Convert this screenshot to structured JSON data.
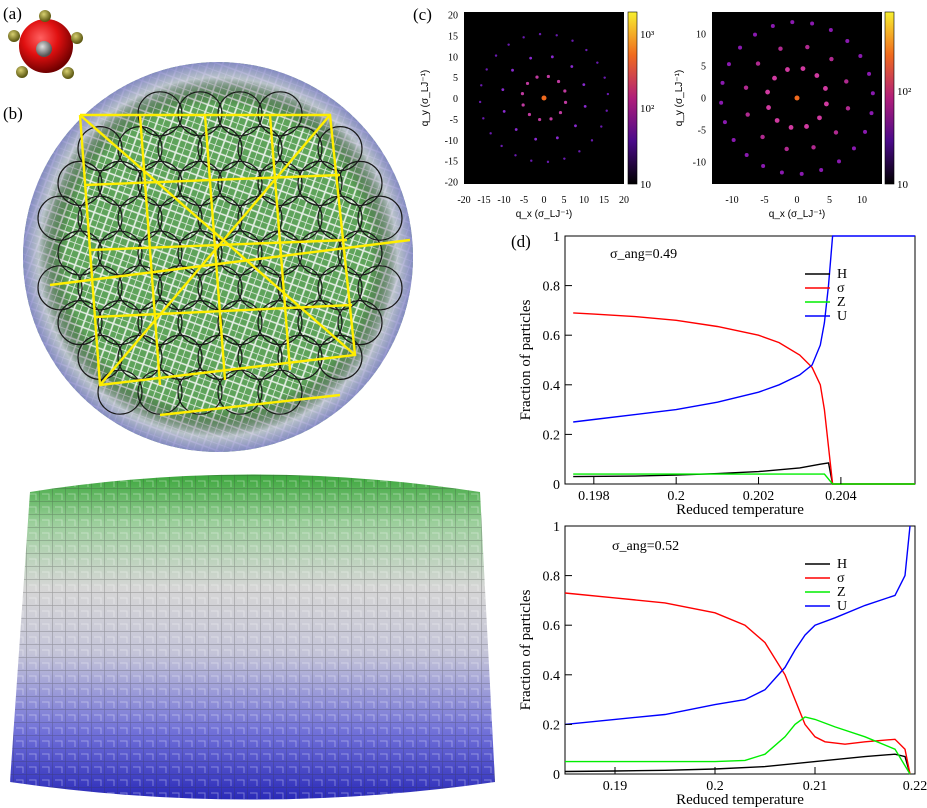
{
  "panel_labels": {
    "a": "(a)",
    "b": "(b)",
    "c": "(c)",
    "d": "(d)"
  },
  "colors": {
    "H": "#000000",
    "sigma": "#ff0000",
    "Z": "#00ee00",
    "U": "#0000ff",
    "lattice": "#ffee00",
    "green": "#3a9a3a",
    "blue": "#3c3ccc",
    "red_sphere": "#e01010"
  },
  "diffraction": [
    {
      "xlabel": "q_x (σ_LJ⁻¹)",
      "ylabel": "q_y (σ_LJ⁻¹)",
      "xticks": [
        "-20",
        "-15",
        "-10",
        "-5",
        "0",
        "5",
        "10",
        "15",
        "20"
      ],
      "yticks": [
        "20",
        "15",
        "10",
        "5",
        "0",
        "-5",
        "-10",
        "-15",
        "-20"
      ],
      "colorbar": {
        "top": "10³",
        "mid": "10²",
        "bottom": "10"
      }
    },
    {
      "xlabel": "q_x (σ_LJ⁻¹)",
      "ylabel": "q_y (σ_LJ⁻¹)",
      "xticks": [
        "-10",
        "-5",
        "0",
        "5",
        "10"
      ],
      "yticks": [
        "10",
        "5",
        "0",
        "-5",
        "-10"
      ],
      "colorbar": {
        "top": "10²",
        "bottom": "10"
      }
    }
  ],
  "chart_data": [
    {
      "type": "line",
      "annotation": "σ_ang=0.49",
      "xlabel": "Reduced temperature",
      "ylabel": "Fraction of particles",
      "xlim": [
        0.1973,
        0.2058
      ],
      "ylim": [
        0,
        1
      ],
      "xticks": [
        "0.198",
        "0.2",
        "0.202",
        "0.204"
      ],
      "yticks": [
        "0",
        "0.2",
        "0.4",
        "0.6",
        "0.8",
        "1"
      ],
      "legend": [
        "H",
        "σ",
        "Z",
        "U"
      ],
      "series": [
        {
          "name": "H",
          "x": [
            0.1975,
            0.199,
            0.2,
            0.201,
            0.202,
            0.203,
            0.2035,
            0.2037,
            0.2038,
            0.2058
          ],
          "y": [
            0.03,
            0.032,
            0.036,
            0.042,
            0.05,
            0.065,
            0.08,
            0.085,
            0.0,
            0.0
          ]
        },
        {
          "name": "σ",
          "x": [
            0.1975,
            0.198,
            0.199,
            0.2,
            0.201,
            0.202,
            0.2025,
            0.203,
            0.2033,
            0.2035,
            0.2036,
            0.2037,
            0.2038,
            0.2058
          ],
          "y": [
            0.69,
            0.685,
            0.675,
            0.66,
            0.635,
            0.6,
            0.57,
            0.52,
            0.47,
            0.4,
            0.3,
            0.15,
            0.0,
            0.0
          ]
        },
        {
          "name": "Z",
          "x": [
            0.1975,
            0.199,
            0.2,
            0.201,
            0.202,
            0.203,
            0.2036,
            0.2038,
            0.2058
          ],
          "y": [
            0.04,
            0.04,
            0.04,
            0.04,
            0.04,
            0.04,
            0.04,
            0.0,
            0.0
          ]
        },
        {
          "name": "U",
          "x": [
            0.1975,
            0.198,
            0.199,
            0.2,
            0.201,
            0.202,
            0.2025,
            0.203,
            0.2033,
            0.2035,
            0.2036,
            0.2037,
            0.2038,
            0.205,
            0.2058
          ],
          "y": [
            0.25,
            0.26,
            0.28,
            0.3,
            0.33,
            0.37,
            0.4,
            0.44,
            0.48,
            0.56,
            0.65,
            0.8,
            1.0,
            1.0,
            1.0
          ]
        }
      ]
    },
    {
      "type": "line",
      "annotation": "σ_ang=0.52",
      "xlabel": "Reduced temperature",
      "ylabel": "Fraction of particles",
      "xlim": [
        0.185,
        0.22
      ],
      "ylim": [
        0,
        1
      ],
      "xticks": [
        "0.19",
        "0.2",
        "0.21",
        "0.22"
      ],
      "yticks": [
        "0",
        "0.2",
        "0.4",
        "0.6",
        "0.8",
        "1"
      ],
      "legend": [
        "H",
        "σ",
        "Z",
        "U"
      ],
      "series": [
        {
          "name": "H",
          "x": [
            0.185,
            0.19,
            0.195,
            0.2,
            0.205,
            0.21,
            0.215,
            0.218,
            0.219,
            0.2195
          ],
          "y": [
            0.01,
            0.012,
            0.015,
            0.02,
            0.03,
            0.05,
            0.07,
            0.08,
            0.07,
            0.0
          ]
        },
        {
          "name": "σ",
          "x": [
            0.185,
            0.19,
            0.195,
            0.2,
            0.203,
            0.205,
            0.207,
            0.208,
            0.209,
            0.21,
            0.211,
            0.213,
            0.215,
            0.218,
            0.219,
            0.2195
          ],
          "y": [
            0.73,
            0.71,
            0.69,
            0.65,
            0.6,
            0.53,
            0.4,
            0.3,
            0.2,
            0.15,
            0.13,
            0.12,
            0.13,
            0.14,
            0.1,
            0.0
          ]
        },
        {
          "name": "Z",
          "x": [
            0.185,
            0.19,
            0.195,
            0.2,
            0.203,
            0.205,
            0.207,
            0.208,
            0.209,
            0.21,
            0.212,
            0.215,
            0.218,
            0.2195
          ],
          "y": [
            0.05,
            0.05,
            0.05,
            0.05,
            0.055,
            0.08,
            0.15,
            0.2,
            0.23,
            0.22,
            0.19,
            0.15,
            0.1,
            0.0
          ]
        },
        {
          "name": "U",
          "x": [
            0.185,
            0.19,
            0.195,
            0.2,
            0.203,
            0.205,
            0.207,
            0.208,
            0.209,
            0.21,
            0.212,
            0.215,
            0.218,
            0.219,
            0.2195
          ],
          "y": [
            0.2,
            0.22,
            0.24,
            0.28,
            0.3,
            0.34,
            0.43,
            0.5,
            0.56,
            0.6,
            0.63,
            0.68,
            0.72,
            0.8,
            1.0
          ]
        }
      ]
    }
  ]
}
